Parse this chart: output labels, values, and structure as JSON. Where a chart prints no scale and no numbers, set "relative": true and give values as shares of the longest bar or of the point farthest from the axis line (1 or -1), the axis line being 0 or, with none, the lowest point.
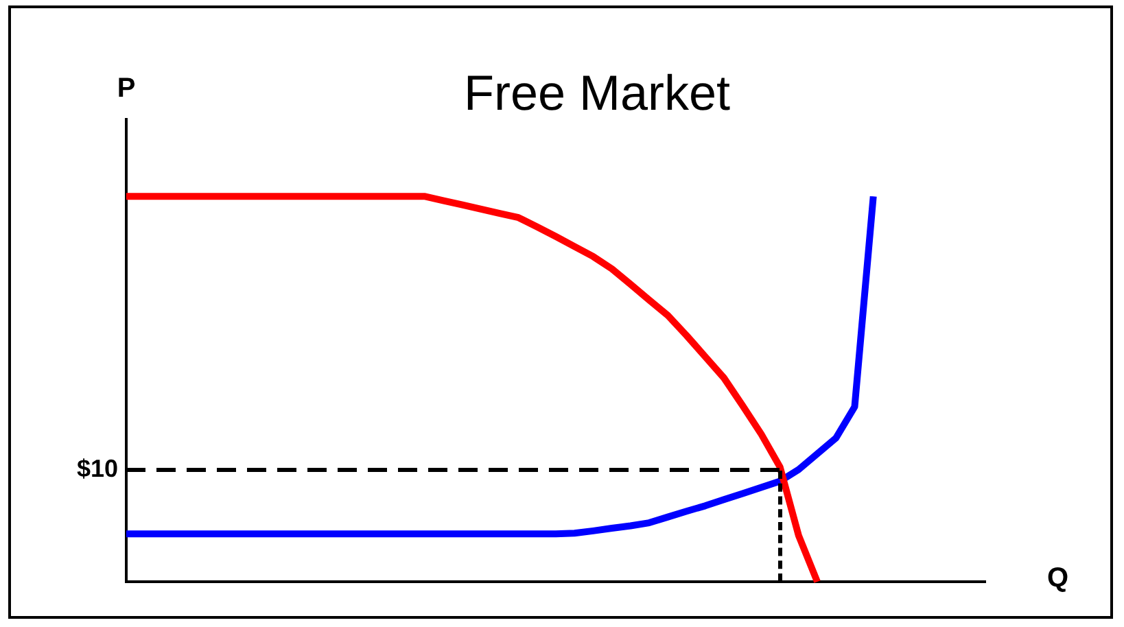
{
  "chart_data": {
    "type": "line",
    "title": "Free Market",
    "xlabel": "Q",
    "ylabel": "P",
    "relative": true,
    "legend": false,
    "grid": false,
    "marker": "none",
    "line_style": "solid",
    "categories": [
      null,
      null,
      null,
      null,
      null,
      null,
      null,
      null,
      null,
      null,
      null,
      null,
      null,
      null,
      null,
      null,
      null,
      null,
      null,
      null,
      null,
      null,
      null,
      null,
      null,
      null,
      null,
      null,
      null,
      null,
      null,
      null,
      null,
      null,
      null,
      null,
      null,
      null,
      null,
      null,
      null,
      null,
      null,
      null,
      null,
      null,
      null
    ],
    "series": [
      {
        "color": "#ff0000",
        "values": [
          1,
          1,
          1,
          1,
          1,
          1,
          1,
          1,
          1,
          1,
          1,
          1,
          1,
          1,
          1,
          1,
          1,
          0.989,
          0.978,
          0.967,
          0.956,
          0.945,
          0.921,
          0.896,
          0.87,
          0.844,
          0.812,
          0.772,
          0.731,
          0.691,
          0.639,
          0.584,
          0.529,
          0.457,
          0.383,
          0.298,
          0.12,
          0,
          null,
          null,
          null,
          null,
          null,
          null,
          null,
          null,
          null
        ]
      },
      {
        "color": "#0000ff",
        "values": [
          0.124,
          0.124,
          0.124,
          0.124,
          0.124,
          0.124,
          0.124,
          0.124,
          0.124,
          0.124,
          0.124,
          0.124,
          0.124,
          0.124,
          0.124,
          0.124,
          0.124,
          0.124,
          0.124,
          0.124,
          0.124,
          0.124,
          0.124,
          0.124,
          0.126,
          0.132,
          0.139,
          0.145,
          0.153,
          0.168,
          0.183,
          0.197,
          0.213,
          0.229,
          0.245,
          0.261,
          0.291,
          0.332,
          0.373,
          0.454,
          1,
          null,
          null,
          null,
          null,
          null,
          null
        ]
      }
    ],
    "ref_lines": [
      {
        "axis": "y",
        "value": 0.29,
        "color": "#000000",
        "line_style": "dashed"
      }
    ],
    "annotations": [
      "$10"
    ]
  }
}
